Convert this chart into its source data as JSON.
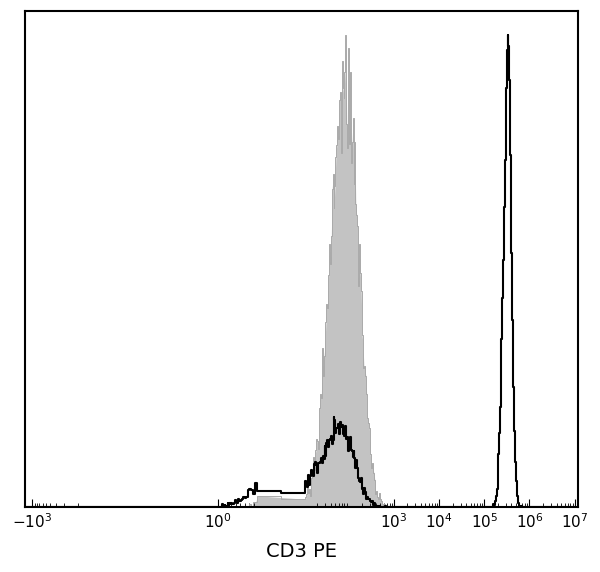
{
  "xlabel": "CD3 PE",
  "xlabel_fontsize": 14,
  "background_color": "#ffffff",
  "plot_bg_color": "#ffffff",
  "border_color": "#000000",
  "isotype_fill_color": "#aaaaaa",
  "isotype_fill_alpha": 0.7,
  "antibody_color": "#000000",
  "antibody_linewidth": 1.5,
  "figsize": [
    6.0,
    5.72
  ],
  "dpi": 100,
  "tick_labelsize": 11,
  "xtick_labels": [
    "-10^3",
    "10^0",
    "10^3",
    "10^4",
    "10^5",
    "10^6",
    "10^7"
  ],
  "xtick_values": [
    -1000,
    1,
    1000,
    10000,
    100000,
    1000000,
    10000000
  ],
  "note": "biexponential/logicle scale. Isotype gray filled peak ~10^2. CD3 black outline: negative peak ~10^1-10^2, positive peak ~3e5"
}
